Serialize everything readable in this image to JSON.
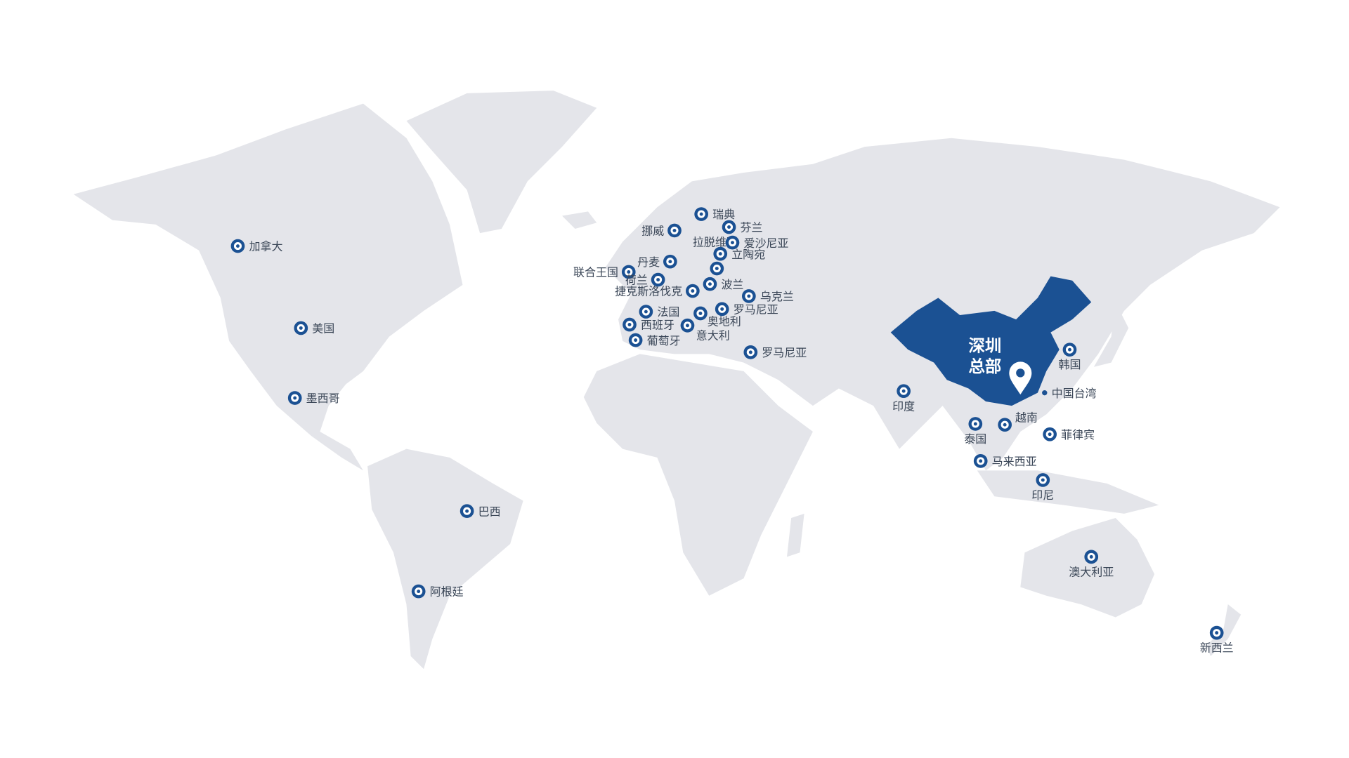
{
  "colors": {
    "land": "#e4e5ea",
    "highlight": "#1b5193",
    "marker": "#1b5193",
    "label": "#3a4657"
  },
  "headquarters": {
    "line1": "深圳",
    "line2": "总部",
    "icon": "map-pin-icon"
  },
  "markers": [
    {
      "label": "加拿大",
      "pos": "right"
    },
    {
      "label": "美国",
      "pos": "right"
    },
    {
      "label": "墨西哥",
      "pos": "right"
    },
    {
      "label": "巴西",
      "pos": "right"
    },
    {
      "label": "阿根廷",
      "pos": "right"
    },
    {
      "label": "瑞典",
      "pos": "right"
    },
    {
      "label": "挪威",
      "pos": "left"
    },
    {
      "label": "芬兰",
      "pos": "right"
    },
    {
      "label": "拉脱维亚",
      "pos": "left"
    },
    {
      "label": "爱沙尼亚",
      "pos": "right"
    },
    {
      "label": "立陶宛",
      "pos": "right"
    },
    {
      "label": "丹麦",
      "pos": "left"
    },
    {
      "label": "联合王国",
      "pos": "left"
    },
    {
      "label": "荷兰",
      "pos": "left"
    },
    {
      "label": "波兰",
      "pos": "right"
    },
    {
      "label": "捷克斯洛伐克",
      "pos": "left"
    },
    {
      "label": "乌克兰",
      "pos": "right"
    },
    {
      "label": "法国",
      "pos": "right"
    },
    {
      "label": "罗马尼亚",
      "pos": "right"
    },
    {
      "label": "西班牙",
      "pos": "right"
    },
    {
      "label": "奥地利",
      "pos": "right"
    },
    {
      "label": "意大利",
      "pos": "below"
    },
    {
      "label": "葡萄牙",
      "pos": "right"
    },
    {
      "label": "罗马尼亚",
      "pos": "right"
    },
    {
      "label": "印度",
      "pos": "below"
    },
    {
      "label": "泰国",
      "pos": "below"
    },
    {
      "label": "越南",
      "pos": "right"
    },
    {
      "label": "中国台湾",
      "pos": "right"
    },
    {
      "label": "菲律宾",
      "pos": "right"
    },
    {
      "label": "马来西亚",
      "pos": "right"
    },
    {
      "label": "印尼",
      "pos": "below"
    },
    {
      "label": "韩国",
      "pos": "below"
    },
    {
      "label": "澳大利亚",
      "pos": "below"
    },
    {
      "label": "新西兰",
      "pos": "below"
    }
  ]
}
